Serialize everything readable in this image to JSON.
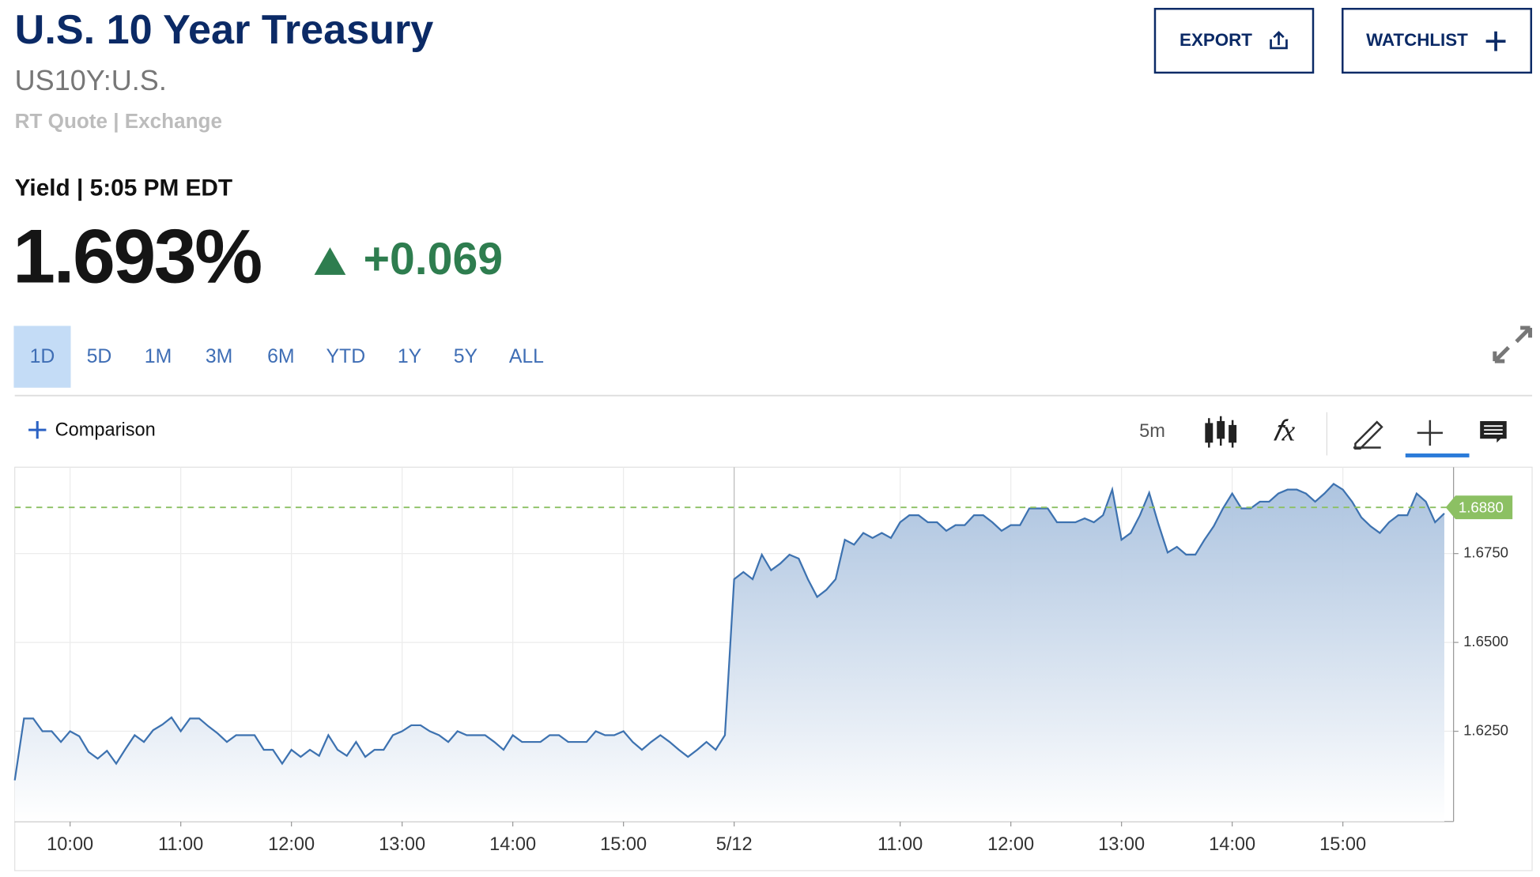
{
  "header": {
    "title": "U.S. 10 Year Treasury",
    "symbol": "US10Y:U.S.",
    "quote_source": "RT Quote | Exchange",
    "yield_label": "Yield | 5:05 PM EDT",
    "price": "1.693%",
    "change": "+0.069",
    "buttons": [
      "EXPORT",
      "WATCHLIST"
    ]
  },
  "ranges": {
    "items": [
      "1D",
      "5D",
      "1M",
      "3M",
      "6M",
      "YTD",
      "1Y",
      "5Y",
      "ALL"
    ],
    "selected": "1D"
  },
  "toolbar": {
    "comparison": "Comparison",
    "interval": "5m"
  },
  "chart_data": {
    "type": "line",
    "color": "#3d72b0",
    "fill": "#a9c1de",
    "grid": true,
    "values": [
      1.6112,
      1.6286,
      1.6286,
      1.625,
      1.625,
      1.622,
      1.625,
      1.6236,
      1.6192,
      1.6173,
      1.6195,
      1.6159,
      1.62,
      1.6239,
      1.622,
      1.6253,
      1.6269,
      1.6289,
      1.625,
      1.6286,
      1.6286,
      1.6264,
      1.6244,
      1.622,
      1.6239,
      1.6239,
      1.6239,
      1.6198,
      1.6198,
      1.6159,
      1.6198,
      1.6178,
      1.6198,
      1.6181,
      1.6239,
      1.6198,
      1.6181,
      1.622,
      1.6178,
      1.6198,
      1.6198,
      1.6239,
      1.625,
      1.6267,
      1.6267,
      1.625,
      1.6239,
      1.622,
      1.625,
      1.6239,
      1.6239,
      1.6239,
      1.622,
      1.6198,
      1.6239,
      1.622,
      1.622,
      1.622,
      1.6239,
      1.6239,
      1.622,
      1.622,
      1.622,
      1.625,
      1.6239,
      1.6239,
      1.625,
      1.622,
      1.6198,
      1.622,
      1.6239,
      1.622,
      1.6198,
      1.6178,
      1.6198,
      1.622,
      1.6198,
      1.6239,
      1.6678,
      1.6698,
      1.6678,
      1.6747,
      1.6703,
      1.6722,
      1.6747,
      1.6736,
      1.6678,
      1.6628,
      1.6648,
      1.6678,
      1.6789,
      1.6775,
      1.6808,
      1.6794,
      1.6808,
      1.6794,
      1.6838,
      1.6858,
      1.6858,
      1.6838,
      1.6838,
      1.6814,
      1.683,
      1.683,
      1.6858,
      1.6858,
      1.6838,
      1.6814,
      1.683,
      1.683,
      1.6877,
      1.6877,
      1.6877,
      1.6838,
      1.6838,
      1.6838,
      1.6849,
      1.6838,
      1.6858,
      1.693,
      1.6789,
      1.6808,
      1.6858,
      1.6921,
      1.6833,
      1.6753,
      1.6769,
      1.6747,
      1.6747,
      1.6789,
      1.6827,
      1.6877,
      1.6919,
      1.6877,
      1.6877,
      1.6896,
      1.6896,
      1.6919,
      1.693,
      1.693,
      1.6919,
      1.6896,
      1.6919,
      1.6946,
      1.693,
      1.6896,
      1.6852,
      1.6827,
      1.6808,
      1.6838,
      1.6858,
      1.6858,
      1.6919,
      1.6896,
      1.6838,
      1.6863
    ],
    "xlim": [
      0,
      156
    ],
    "xticks": [
      {
        "value": 6,
        "label": "10:00"
      },
      {
        "value": 18,
        "label": "11:00"
      },
      {
        "value": 30,
        "label": "12:00"
      },
      {
        "value": 42,
        "label": "13:00"
      },
      {
        "value": 54,
        "label": "14:00"
      },
      {
        "value": 66,
        "label": "15:00"
      },
      {
        "value": 78,
        "label": "5/12"
      },
      {
        "value": 96,
        "label": "11:00"
      },
      {
        "value": 108,
        "label": "12:00"
      },
      {
        "value": 120,
        "label": "13:00"
      },
      {
        "value": 132,
        "label": "14:00"
      },
      {
        "value": 144,
        "label": "15:00"
      }
    ],
    "ylim": [
      1.5996,
      1.6993
    ],
    "yticks": [
      {
        "value": 1.625,
        "label": "1.6250"
      },
      {
        "value": 1.65,
        "label": "1.6500"
      },
      {
        "value": 1.675,
        "label": "1.6750"
      }
    ],
    "reference_line": {
      "value": 1.688,
      "label": "1.6880",
      "color": "#8cc063"
    }
  }
}
